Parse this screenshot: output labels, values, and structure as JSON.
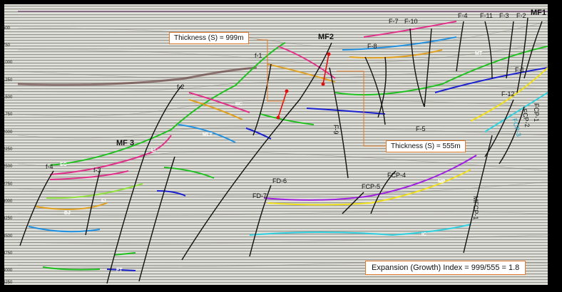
{
  "depth_axis": [
    "-500",
    "-750",
    "-1000",
    "-1250",
    "-1500",
    "-1750",
    "-2000",
    "-2250",
    "-2500",
    "-2750",
    "-3000",
    "-3250",
    "-3500",
    "-3750",
    "-4000",
    "-4250"
  ],
  "callouts": {
    "thickness_top": "Thickness (S) = 999m",
    "thickness_bottom": "Thickness (S) = 555m",
    "growth_index": "Expansion (Growth) Index = 999/555 = 1.8"
  },
  "major_faults": {
    "mf1": "MF1",
    "mf2": "MF2",
    "mf3": "MF 3"
  },
  "faults": {
    "f1": "f-1",
    "f2": "f-2",
    "f3": "f-3",
    "f4": "f-4",
    "F3": "F-3",
    "F4": "F-4",
    "F5": "F-5",
    "F7": "F-7",
    "F8": "F-8",
    "F9": "F-9",
    "F10": "F-10",
    "F11": "F-11",
    "F1": "F-1",
    "F2": "F-2",
    "F12": "F-12",
    "FD6": "FD-6",
    "FD7": "FD-7",
    "FCP1": "FCP-1",
    "FCP2": "FCP-2",
    "FCP3": "FCP-3",
    "FCP4": "FCP-4",
    "FCP5": "FCP-5",
    "MFCP1": "MFCP-1"
  },
  "horizons": {
    "EC": "EC",
    "EI": "EI",
    "BJ": "BJ",
    "LI": "LI",
    "FT": "FT",
    "BC": "BC",
    "MLT": "MLT",
    "MT": "MT",
    "MP": "MP",
    "IC": "IC"
  },
  "colors": {
    "callout_border": "#e07a2e",
    "thickness_marker": "#e01010"
  }
}
